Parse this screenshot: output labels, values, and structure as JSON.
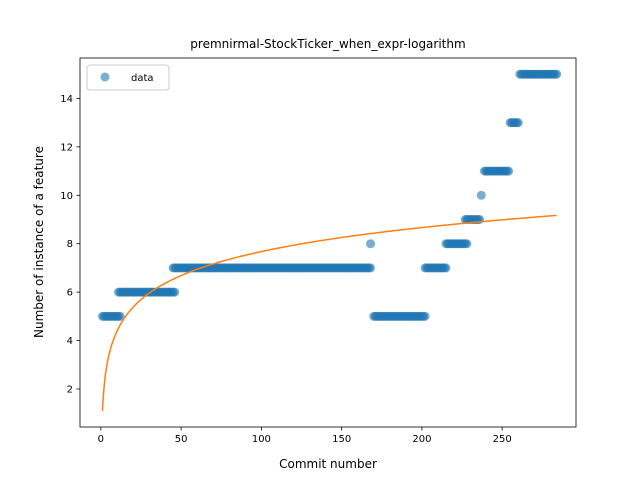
{
  "chart_data": {
    "type": "scatter",
    "title": "premnirmal-StockTicker_when_expr-logarithm",
    "xlabel": "Commit number",
    "ylabel": "Number of instance of a feature",
    "xlim": [
      -13,
      296
    ],
    "ylim": [
      0.43,
      15.67
    ],
    "xticks": [
      0,
      50,
      100,
      150,
      200,
      250
    ],
    "yticks": [
      2,
      4,
      6,
      8,
      10,
      12,
      14
    ],
    "grid": false,
    "legend": {
      "position": "upper left",
      "entries": [
        "data"
      ]
    },
    "colors": {
      "data": "#1f77b4",
      "fit": "#ff7f0e"
    },
    "series": [
      {
        "name": "data",
        "style": "markers",
        "runs": [
          {
            "x_start": 1,
            "x_end": 12,
            "y": 5
          },
          {
            "x_start": 11,
            "x_end": 46,
            "y": 6
          },
          {
            "x_start": 45,
            "x_end": 168,
            "y": 7
          },
          {
            "x_start": 168,
            "x_end": 168,
            "y": 8
          },
          {
            "x_start": 170,
            "x_end": 202,
            "y": 5
          },
          {
            "x_start": 202,
            "x_end": 215,
            "y": 7
          },
          {
            "x_start": 215,
            "x_end": 228,
            "y": 8
          },
          {
            "x_start": 227,
            "x_end": 236,
            "y": 9
          },
          {
            "x_start": 237,
            "x_end": 237,
            "y": 10
          },
          {
            "x_start": 239,
            "x_end": 254,
            "y": 11
          },
          {
            "x_start": 255,
            "x_end": 260,
            "y": 13
          },
          {
            "x_start": 261,
            "x_end": 284,
            "y": 15
          }
        ]
      },
      {
        "style": "line",
        "fit": "logarithmic",
        "a": 1.43,
        "b": -0.42,
        "x_range": [
          1,
          284
        ]
      }
    ]
  }
}
